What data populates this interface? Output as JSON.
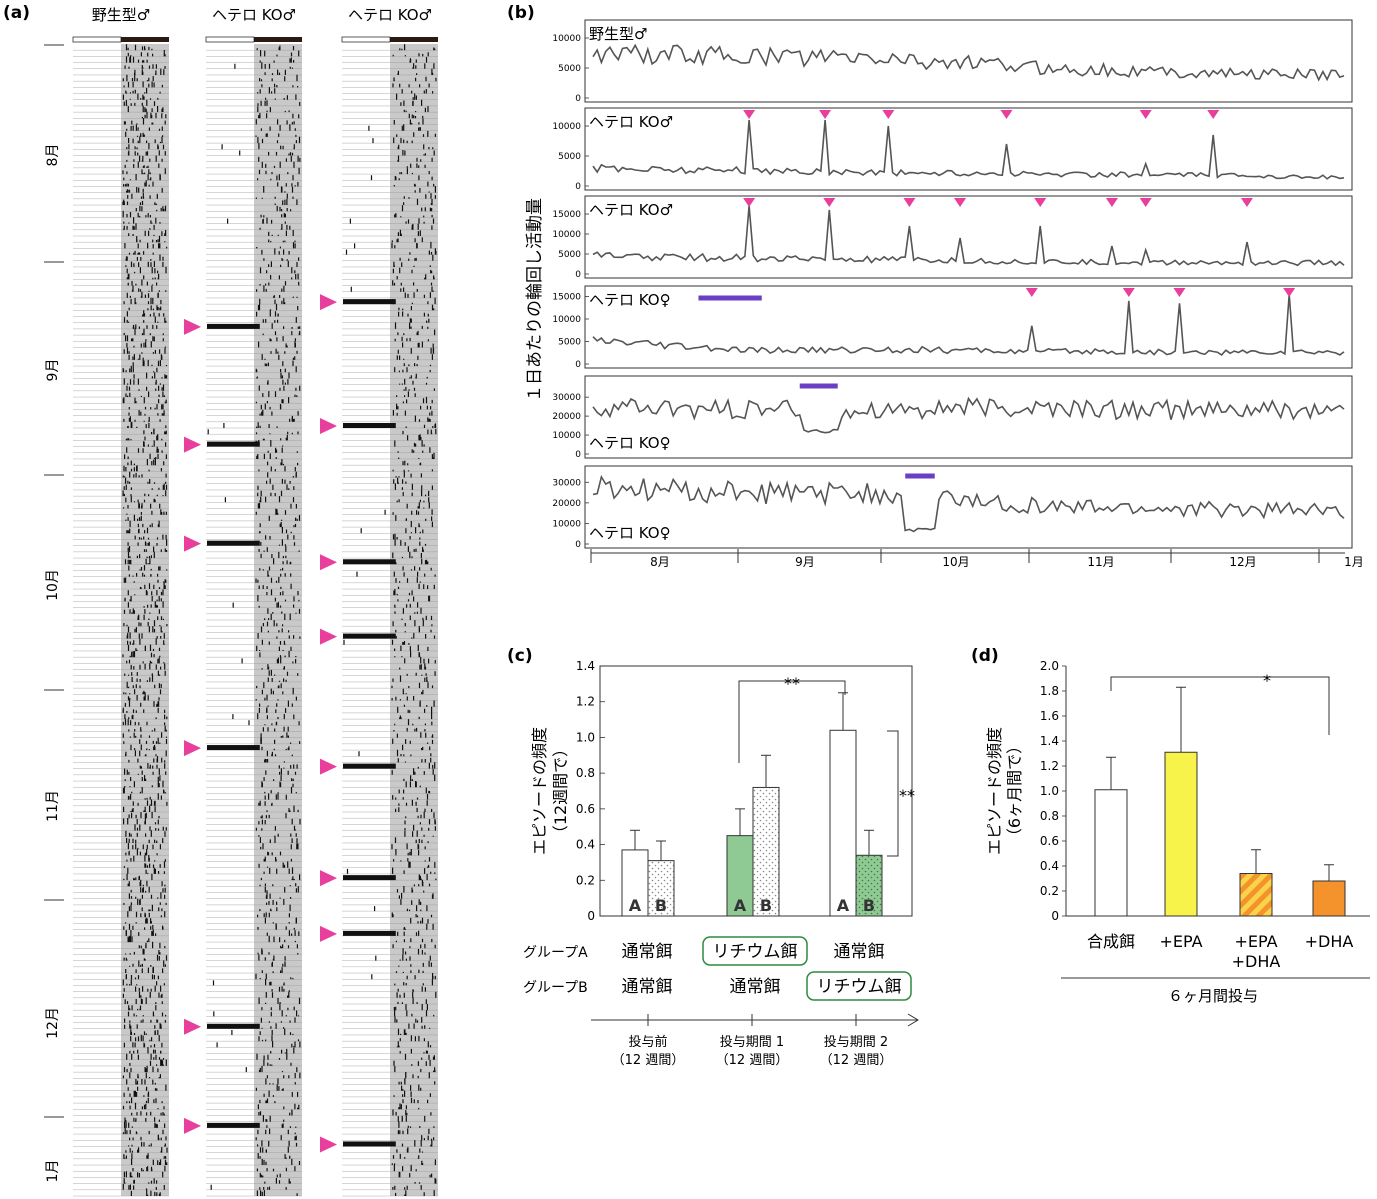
{
  "colors": {
    "arrow": "#e83e9c",
    "bar_purple": "#6b3fc4",
    "green": "#8fc994",
    "green_dark": "#2e8b3e",
    "yellow": "#f7f34a",
    "orange": "#f4922b",
    "orange_stripe": "#f9d44a",
    "shade": "#c9c9c9",
    "line": "#555555"
  },
  "panel_a": {
    "label": "(a)",
    "columns": [
      "野生型♂",
      "ヘテロ KO♂",
      "ヘテロ KO♂"
    ],
    "months": [
      "8月",
      "9月",
      "10月",
      "11月",
      "12月",
      "1月"
    ],
    "episode_days_col2": [
      46,
      65,
      81,
      114,
      159,
      175
    ],
    "episode_days_col3": [
      42,
      62,
      84,
      96,
      117,
      135,
      144,
      178
    ]
  },
  "chart_data": [
    {
      "type": "line",
      "panel": "(b)",
      "ylabel": "１日あたりの輪回し活動量",
      "x_months": [
        "8月",
        "9月",
        "10月",
        "11月",
        "12月",
        "1月"
      ],
      "series": [
        {
          "name": "野生型♂",
          "ylim": [
            0,
            12000
          ],
          "ticks": [
            "10000",
            "5000",
            "0"
          ],
          "label_pos": "top-left",
          "baseline": [
            7500,
            7000,
            6500,
            5000,
            4200,
            3800
          ],
          "spikes": [],
          "dip": null,
          "event_bar": null
        },
        {
          "name": "ヘテロ KO♂",
          "ylim": [
            0,
            12000
          ],
          "ticks": [
            "10000",
            "5000",
            "0"
          ],
          "label_pos": "top-left",
          "baseline": [
            3000,
            2600,
            2200,
            2000,
            1800,
            1500
          ],
          "spikes": [
            {
              "day": 37,
              "value": 11000
            },
            {
              "day": 55,
              "value": 11000
            },
            {
              "day": 70,
              "value": 10000
            },
            {
              "day": 98,
              "value": 7000
            },
            {
              "day": 131,
              "value": 3700
            },
            {
              "day": 147,
              "value": 8500
            }
          ],
          "dip": null,
          "event_bar": null
        },
        {
          "name": "ヘテロ KO♂",
          "ylim": [
            0,
            18000
          ],
          "ticks": [
            "15000",
            "10000",
            "5000",
            "0"
          ],
          "label_pos": "top-left",
          "baseline": [
            4500,
            4000,
            3500,
            3000,
            2800,
            2800
          ],
          "spikes": [
            {
              "day": 37,
              "value": 17000
            },
            {
              "day": 56,
              "value": 16000
            },
            {
              "day": 75,
              "value": 12000
            },
            {
              "day": 87,
              "value": 9000
            },
            {
              "day": 106,
              "value": 12000
            },
            {
              "day": 123,
              "value": 7000
            },
            {
              "day": 131,
              "value": 6000
            },
            {
              "day": 155,
              "value": 8000
            }
          ],
          "dip": null,
          "event_bar": null
        },
        {
          "name": "ヘテロ KO♀",
          "ylim": [
            0,
            16000
          ],
          "ticks": [
            "15000",
            "10000",
            "5000",
            "0"
          ],
          "label_pos": "top-left",
          "baseline": [
            5000,
            3000,
            3200,
            2800,
            2600,
            2600
          ],
          "spikes": [
            {
              "day": 104,
              "value": 8500
            },
            {
              "day": 127,
              "value": 14000
            },
            {
              "day": 139,
              "value": 13500
            },
            {
              "day": 165,
              "value": 15500
            }
          ],
          "dip": null,
          "event_bar": [
            25,
            40
          ]
        },
        {
          "name": "ヘテロ KO♀",
          "ylim": [
            0,
            38000
          ],
          "ticks": [
            "30000",
            "20000",
            "10000",
            "0"
          ],
          "label_pos": "bottom-left",
          "baseline": [
            24000,
            23000,
            24000,
            24000,
            23000,
            23000
          ],
          "spikes": [],
          "dip": [
            50,
            58,
            12000
          ],
          "event_bar": [
            49,
            58
          ]
        },
        {
          "name": "ヘテロ KO♀",
          "ylim": [
            0,
            35000
          ],
          "ticks": [
            "30000",
            "20000",
            "10000",
            "0"
          ],
          "label_pos": "bottom-left",
          "baseline": [
            27000,
            25000,
            24000,
            18000,
            17000,
            16000
          ],
          "spikes": [],
          "dip": [
            74,
            81,
            7000
          ],
          "event_bar": [
            74,
            81
          ]
        }
      ]
    },
    {
      "type": "bar",
      "panel": "(c)",
      "ylabel": "エピソードの頻度\n（12週間で）",
      "ylim": [
        0,
        1.4
      ],
      "yticks": [
        "0",
        "0.2",
        "0.4",
        "0.6",
        "0.8",
        "1.0",
        "1.2",
        "1.4"
      ],
      "categories": [
        "投与前\n（12 週間）",
        "投与期間 1\n（12 週間）",
        "投与期間 2\n（12 週間）"
      ],
      "series": [
        {
          "name": "A",
          "values": [
            0.37,
            0.45,
            1.04
          ],
          "errors": [
            0.11,
            0.15,
            0.21
          ],
          "fill": [
            "white",
            "green",
            "white"
          ]
        },
        {
          "name": "B",
          "values": [
            0.31,
            0.72,
            0.34
          ],
          "errors": [
            0.11,
            0.18,
            0.14
          ],
          "fill": [
            "dots",
            "dots",
            "green-dots"
          ]
        }
      ],
      "significance": [
        "**",
        "**"
      ],
      "group_rows": [
        {
          "label": "グループA",
          "items": [
            "通常餌",
            "リチウム餌",
            "通常餌"
          ],
          "boxed": 1
        },
        {
          "label": "グループB",
          "items": [
            "通常餌",
            "通常餌",
            "リチウム餌"
          ],
          "boxed": 2
        }
      ]
    },
    {
      "type": "bar",
      "panel": "(d)",
      "ylabel": "エピソードの頻度\n（6ヶ月間で）",
      "ylim": [
        0,
        2.0
      ],
      "yticks": [
        "0",
        "0.2",
        "0.4",
        "0.6",
        "0.8",
        "1.0",
        "1.2",
        "1.4",
        "1.6",
        "1.8",
        "2.0"
      ],
      "categories": [
        "合成餌",
        "+EPA",
        "+EPA\n+DHA",
        "+DHA"
      ],
      "values": [
        1.01,
        1.31,
        0.34,
        0.28
      ],
      "errors": [
        0.26,
        0.52,
        0.19,
        0.13
      ],
      "significance": [
        "*"
      ],
      "xlabel": "６ヶ月間投与"
    }
  ]
}
